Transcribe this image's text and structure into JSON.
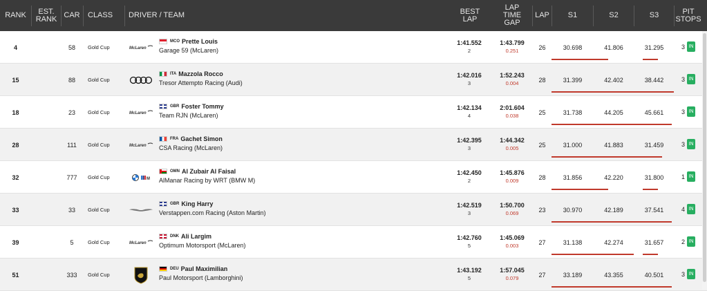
{
  "headers": {
    "rank": "RANK",
    "est_rank_1": "EST.",
    "est_rank_2": "RANK",
    "car": "CAR",
    "class": "CLASS",
    "driver_team": "DRIVER / TEAM",
    "best_lap_1": "BEST",
    "best_lap_2": "LAP",
    "gap_1": "LAP",
    "gap_2": "TIME",
    "gap_3": "GAP",
    "lap": "LAP",
    "s1": "S1",
    "s2": "S2",
    "s3": "S3",
    "pit_1": "PIT",
    "pit_2": "STOPS"
  },
  "rows": [
    {
      "rank": "4",
      "car": "58",
      "class": "Gold Cup",
      "flag": "mco",
      "country": "MCO",
      "driver": "Prette Louis",
      "team": "Garage 59 (McLaren)",
      "logo": "mclaren",
      "best": "1:41.552",
      "best_lap": "2",
      "gap": "1:43.799",
      "gap_diff": "0.251",
      "lap": "26",
      "s1": "30.698",
      "s2": "41.806",
      "s3": "31.295",
      "pits": "3",
      "pit_label": "IN"
    },
    {
      "rank": "15",
      "car": "88",
      "class": "Gold Cup",
      "flag": "ita",
      "country": "ITA",
      "driver": "Mazzola Rocco",
      "team": "Tresor Attempto Racing (Audi)",
      "logo": "audi",
      "best": "1:42.016",
      "best_lap": "3",
      "gap": "1:52.243",
      "gap_diff": "0.004",
      "lap": "28",
      "s1": "31.399",
      "s2": "42.402",
      "s3": "38.442",
      "pits": "3",
      "pit_label": "IN"
    },
    {
      "rank": "18",
      "car": "23",
      "class": "Gold Cup",
      "flag": "gbr",
      "country": "GBR",
      "driver": "Foster Tommy",
      "team": "Team RJN (McLaren)",
      "logo": "mclaren",
      "best": "1:42.134",
      "best_lap": "4",
      "gap": "2:01.604",
      "gap_diff": "0.038",
      "lap": "25",
      "s1": "31.738",
      "s2": "44.205",
      "s3": "45.661",
      "pits": "3",
      "pit_label": "IN"
    },
    {
      "rank": "28",
      "car": "111",
      "class": "Gold Cup",
      "flag": "fra",
      "country": "FRA",
      "driver": "Gachet Simon",
      "team": "CSA Racing (McLaren)",
      "logo": "mclaren",
      "best": "1:42.395",
      "best_lap": "3",
      "gap": "1:44.342",
      "gap_diff": "0.005",
      "lap": "25",
      "s1": "31.000",
      "s2": "41.883",
      "s3": "31.459",
      "pits": "3",
      "pit_label": "IN"
    },
    {
      "rank": "32",
      "car": "777",
      "class": "Gold Cup",
      "flag": "omn",
      "country": "OMN",
      "driver": "Al Zubair Al Faisal",
      "team": "AlManar Racing by WRT (BMW M)",
      "logo": "bmw",
      "best": "1:42.450",
      "best_lap": "2",
      "gap": "1:45.876",
      "gap_diff": "0.009",
      "lap": "28",
      "s1": "31.856",
      "s2": "42.220",
      "s3": "31.800",
      "pits": "1",
      "pit_label": "IN"
    },
    {
      "rank": "33",
      "car": "33",
      "class": "Gold Cup",
      "flag": "gbr",
      "country": "GBR",
      "driver": "King Harry",
      "team": "Verstappen.com Racing (Aston Martin)",
      "logo": "aston",
      "best": "1:42.519",
      "best_lap": "3",
      "gap": "1:50.700",
      "gap_diff": "0.069",
      "lap": "23",
      "s1": "30.970",
      "s2": "42.189",
      "s3": "37.541",
      "pits": "4",
      "pit_label": "IN"
    },
    {
      "rank": "39",
      "car": "5",
      "class": "Gold Cup",
      "flag": "dnk",
      "country": "DNK",
      "driver": "Ali Largim",
      "team": "Optimum Motorsport (McLaren)",
      "logo": "mclaren",
      "best": "1:42.760",
      "best_lap": "5",
      "gap": "1:45.069",
      "gap_diff": "0.003",
      "lap": "27",
      "s1": "31.138",
      "s2": "42.274",
      "s3": "31.657",
      "pits": "2",
      "pit_label": "IN"
    },
    {
      "rank": "51",
      "car": "333",
      "class": "Gold Cup",
      "flag": "deu",
      "country": "DEU",
      "driver": "Paul Maximilian",
      "team": "Paul Motorsport (Lamborghini)",
      "logo": "lambo",
      "best": "1:43.192",
      "best_lap": "5",
      "gap": "1:57.045",
      "gap_diff": "0.079",
      "lap": "27",
      "s1": "33.189",
      "s2": "43.355",
      "s3": "40.501",
      "pits": "3",
      "pit_label": "IN"
    }
  ],
  "logos": {
    "mclaren_text": "McLaren"
  },
  "colors": {
    "header_bg": "#3a3a3a",
    "pit_green": "#27ae60",
    "gap_red": "#c0392b"
  }
}
